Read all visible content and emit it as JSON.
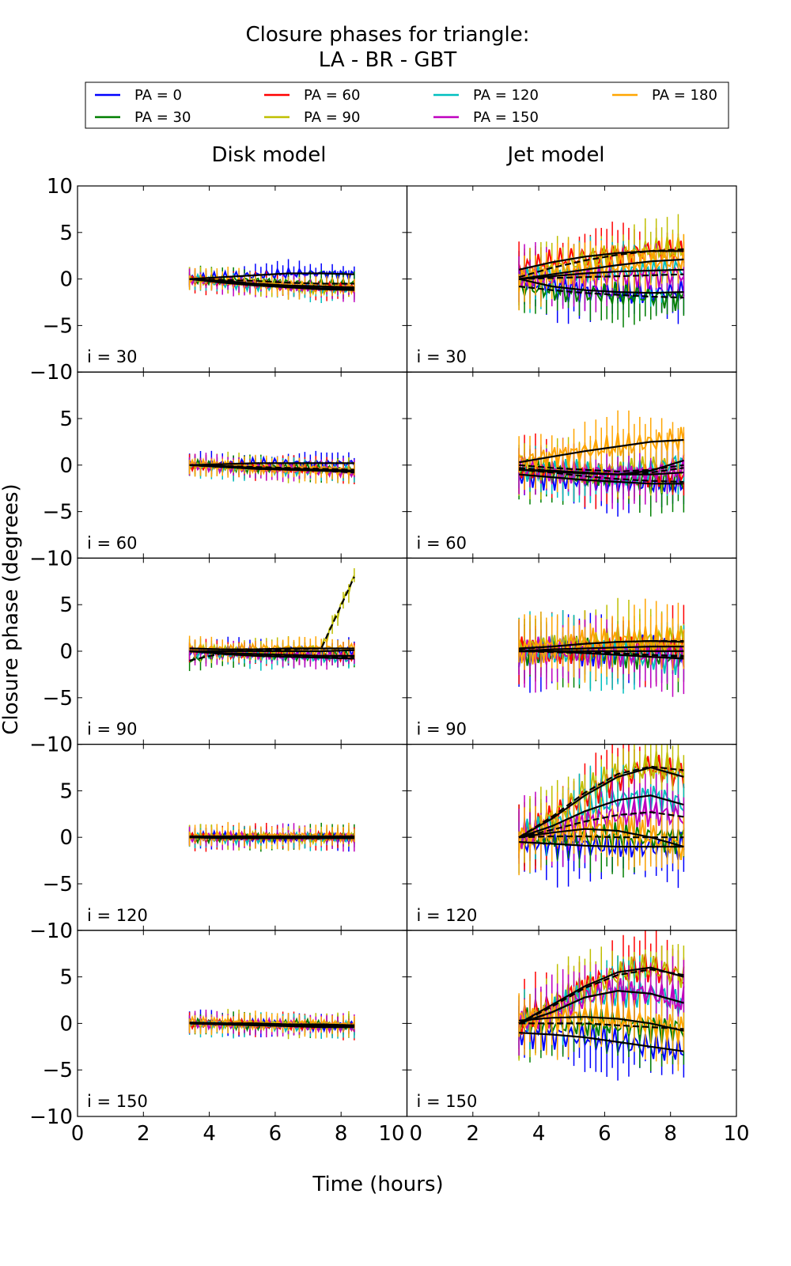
{
  "chart_data": {
    "type": "line",
    "title": "Closure phases for triangle:",
    "subtitle": "LA - BR - GBT",
    "xlabel": "Time (hours)",
    "ylabel": "Closure phase (degrees)",
    "xlim": [
      0,
      10
    ],
    "ylim": [
      -10,
      10
    ],
    "x_ticks": [
      "0",
      "2",
      "4",
      "6",
      "8",
      "10"
    ],
    "y_ticks": [
      "10",
      "5",
      "0",
      "−5",
      "−10"
    ],
    "grid": false,
    "legend_placement": "top",
    "columns": [
      "Disk model",
      "Jet model"
    ],
    "legend": [
      {
        "name": "PA = 0",
        "color": "#0000ff"
      },
      {
        "name": "PA = 30",
        "color": "#007f00"
      },
      {
        "name": "PA = 60",
        "color": "#ff0000"
      },
      {
        "name": "PA = 90",
        "color": "#bfbf00"
      },
      {
        "name": "PA = 120",
        "color": "#00bfbf"
      },
      {
        "name": "PA = 150",
        "color": "#bf00bf"
      },
      {
        "name": "PA = 180",
        "color": "#ffa500"
      }
    ],
    "x": [
      3.4,
      4.4,
      5.4,
      6.4,
      7.4,
      8.4
    ],
    "panels": [
      {
        "column": 0,
        "label": "i = 30",
        "error": 1.0,
        "y": [
          [
            0,
            0.2,
            0.4,
            0.6,
            0.6,
            0.5
          ],
          [
            0,
            -0.1,
            -0.2,
            -0.4,
            -0.5,
            -0.5
          ],
          [
            0,
            -0.3,
            -0.6,
            -0.8,
            -1,
            -1
          ],
          [
            0,
            -0.3,
            -0.6,
            -0.8,
            -1,
            -1.1
          ],
          [
            0,
            -0.4,
            -0.7,
            -0.9,
            -1.1,
            -1.2
          ],
          [
            0,
            -0.3,
            -0.6,
            -0.9,
            -1,
            -1
          ],
          [
            0,
            -0.2,
            -0.5,
            -0.7,
            -0.8,
            -0.9
          ]
        ]
      },
      {
        "column": 1,
        "label": "i = 30",
        "error": 2.5,
        "y": [
          [
            0,
            -0.8,
            -1.2,
            -1.4,
            -1.5,
            -1.4
          ],
          [
            -0.8,
            -1.2,
            -1.5,
            -1.7,
            -1.9,
            -2
          ],
          [
            1,
            1.8,
            2.4,
            2.8,
            3,
            3
          ],
          [
            0.2,
            1.2,
            2,
            2.6,
            3,
            3.2
          ],
          [
            0,
            0.3,
            0.6,
            0.8,
            0.9,
            1
          ],
          [
            0,
            0.1,
            0.2,
            0.3,
            0.4,
            0.5
          ],
          [
            0,
            0.5,
            1,
            1.5,
            1.9,
            2.1
          ]
        ]
      },
      {
        "column": 0,
        "label": "i = 60",
        "error": 1.0,
        "y": [
          [
            0,
            0.1,
            0.2,
            0.2,
            0.2,
            0.2
          ],
          [
            0,
            -0.1,
            -0.2,
            -0.3,
            -0.4,
            -0.5
          ],
          [
            0,
            -0.2,
            -0.3,
            -0.4,
            -0.5,
            -0.6
          ],
          [
            0,
            -0.1,
            -0.3,
            -0.4,
            -0.5,
            -0.6
          ],
          [
            0,
            -0.2,
            -0.4,
            -0.5,
            -0.6,
            -0.7
          ],
          [
            0,
            -0.2,
            -0.4,
            -0.5,
            -0.6,
            -0.8
          ],
          [
            0,
            -0.1,
            -0.3,
            -0.4,
            -0.5,
            -0.6
          ]
        ]
      },
      {
        "column": 1,
        "label": "i = 60",
        "error": 2.5,
        "y": [
          [
            -1,
            -1.3,
            -1.6,
            -1.8,
            -2,
            -2
          ],
          [
            -0.5,
            -0.8,
            -1.2,
            -1.5,
            -1.7,
            -1.8
          ],
          [
            -0.5,
            -0.6,
            -0.8,
            -1,
            -1,
            -0.8
          ],
          [
            0,
            -0.3,
            -0.5,
            -0.7,
            -0.5,
            0
          ],
          [
            -0.5,
            -0.7,
            -0.9,
            -1,
            -0.6,
            0.5
          ],
          [
            -0.3,
            -0.6,
            -0.8,
            -1,
            -0.8,
            -0.3
          ],
          [
            0.3,
            0.9,
            1.5,
            2,
            2.5,
            2.7
          ]
        ]
      },
      {
        "column": 0,
        "label": "i = 90",
        "error": 1.0,
        "y": [
          [
            0,
            0,
            0,
            0,
            0,
            0.1
          ],
          [
            -1,
            -0.2,
            -0.3,
            -0.4,
            -0.5,
            -0.5
          ],
          [
            0,
            -0.2,
            -0.3,
            -0.4,
            -0.5,
            -0.5
          ],
          [
            0,
            0,
            0.1,
            0.2,
            0.3,
            8
          ],
          [
            0,
            -0.3,
            -0.5,
            -0.6,
            -0.7,
            -0.8
          ],
          [
            0,
            -0.2,
            -0.4,
            -0.5,
            -0.6,
            -0.6
          ],
          [
            0.3,
            0.2,
            0.2,
            0.3,
            0.3,
            0.3
          ]
        ]
      },
      {
        "column": 1,
        "label": "i = 90",
        "error": 3.0,
        "y": [
          [
            0,
            0,
            0,
            0,
            0,
            0
          ],
          [
            0,
            -0.1,
            -0.2,
            -0.3,
            -0.4,
            -0.5
          ],
          [
            0,
            0.2,
            0.3,
            0.4,
            0.5,
            0.5
          ],
          [
            0.2,
            0.5,
            0.8,
            1,
            1.1,
            1.1
          ],
          [
            0,
            0,
            -0.2,
            -0.4,
            -0.6,
            -0.8
          ],
          [
            0,
            0,
            0,
            -0.2,
            -0.4,
            -0.6
          ],
          [
            0.3,
            0.5,
            0.8,
            1,
            1.1,
            1
          ]
        ]
      },
      {
        "column": 0,
        "label": "i = 120",
        "error": 1.0,
        "y": [
          [
            0,
            0,
            0,
            0,
            0,
            0
          ],
          [
            0,
            0,
            0,
            0,
            0,
            0.1
          ],
          [
            0,
            0,
            0,
            0,
            0,
            0
          ],
          [
            0,
            0,
            0,
            0,
            0,
            0
          ],
          [
            0,
            -0.1,
            -0.1,
            -0.1,
            -0.1,
            -0.1
          ],
          [
            0,
            0,
            0,
            0,
            0,
            0
          ],
          [
            0.1,
            0.1,
            0.1,
            0.1,
            0.1,
            0.1
          ]
        ]
      },
      {
        "column": 1,
        "label": "i = 120",
        "error": 3.0,
        "y": [
          [
            -0.5,
            -0.7,
            -0.9,
            -1,
            -1,
            -1
          ],
          [
            0,
            0.1,
            0.1,
            0,
            0,
            0
          ],
          [
            0,
            2,
            4.5,
            6.5,
            7.5,
            6.5
          ],
          [
            0,
            2.2,
            4.8,
            6.8,
            7.6,
            7.2
          ],
          [
            0,
            1.2,
            2.8,
            4,
            4.5,
            3.5
          ],
          [
            0,
            0.8,
            1.7,
            2.4,
            2.7,
            2.2
          ],
          [
            0,
            0.5,
            0.9,
            0.7,
            0,
            -1
          ]
        ]
      },
      {
        "column": 0,
        "label": "i = 150",
        "error": 1.0,
        "y": [
          [
            0,
            0,
            -0.1,
            -0.1,
            -0.2,
            -0.2
          ],
          [
            0,
            0,
            -0.1,
            -0.1,
            -0.2,
            -0.3
          ],
          [
            0,
            -0.1,
            -0.2,
            -0.2,
            -0.3,
            -0.3
          ],
          [
            0,
            0,
            0,
            -0.1,
            -0.1,
            -0.2
          ],
          [
            0,
            -0.1,
            -0.2,
            -0.3,
            -0.4,
            -0.4
          ],
          [
            0,
            -0.1,
            -0.1,
            -0.2,
            -0.3,
            -0.3
          ],
          [
            0.1,
            0,
            0,
            -0.1,
            -0.1,
            -0.2
          ]
        ]
      },
      {
        "column": 1,
        "label": "i = 150",
        "error": 3.0,
        "y": [
          [
            -1,
            -1.2,
            -1.5,
            -2,
            -2.5,
            -3
          ],
          [
            0,
            0,
            0,
            -0.2,
            -0.4,
            -0.6
          ],
          [
            0,
            2,
            4,
            5.5,
            6,
            5
          ],
          [
            0,
            1.8,
            3.8,
            5.2,
            5.8,
            5.2
          ],
          [
            0,
            1.2,
            2.8,
            3.5,
            3.2,
            2.2
          ],
          [
            0,
            1.2,
            2.8,
            3.5,
            3.2,
            2.2
          ],
          [
            0.3,
            0.6,
            0.7,
            0.5,
            0,
            -0.8
          ]
        ]
      }
    ]
  }
}
